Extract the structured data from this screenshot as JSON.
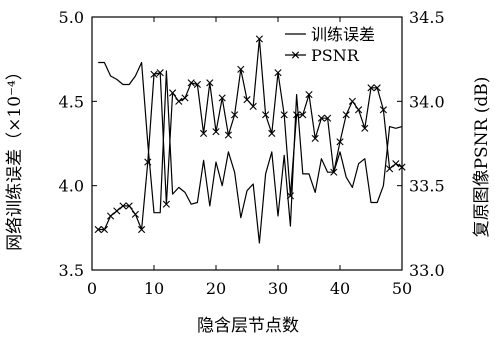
{
  "chart_data": {
    "type": "line",
    "xlabel": "隐含层节点数",
    "ylabel_left": "网络训练误差（×10⁻⁴）",
    "ylabel_right": "复原图像PSNR (dB)",
    "xlim": [
      0,
      50
    ],
    "ylim_left": [
      3.5,
      5.0
    ],
    "ylim_right": [
      33.0,
      34.5
    ],
    "xticks": [
      0,
      10,
      20,
      30,
      40,
      50
    ],
    "yticks_left": [
      "3.5",
      "4.0",
      "4.5",
      "5.0"
    ],
    "yticks_right": [
      "33.0",
      "33.5",
      "34.0",
      "34.5"
    ],
    "grid": false,
    "legend_position": "top-right",
    "series": [
      {
        "name": "训练误差",
        "axis": "left",
        "marker": "none",
        "x": [
          1,
          2,
          3,
          4,
          5,
          6,
          7,
          8,
          9,
          10,
          11,
          12,
          13,
          14,
          15,
          16,
          17,
          18,
          19,
          20,
          21,
          22,
          23,
          24,
          25,
          26,
          27,
          28,
          29,
          30,
          31,
          32,
          33,
          34,
          35,
          36,
          37,
          38,
          39,
          40,
          41,
          42,
          43,
          44,
          45,
          46,
          47,
          48,
          49,
          50
        ],
        "values": [
          4.73,
          4.73,
          4.65,
          4.63,
          4.6,
          4.6,
          4.65,
          4.73,
          4.25,
          3.84,
          3.84,
          4.68,
          3.95,
          3.99,
          3.96,
          3.89,
          3.9,
          4.15,
          3.88,
          4.14,
          4.0,
          4.2,
          4.08,
          3.81,
          3.97,
          4.01,
          3.66,
          4.07,
          4.2,
          3.82,
          4.18,
          3.76,
          4.54,
          4.07,
          4.07,
          3.96,
          4.16,
          4.08,
          4.08,
          4.2,
          4.05,
          3.99,
          4.13,
          4.16,
          3.9,
          3.9,
          4.0,
          4.35,
          4.34,
          4.35
        ]
      },
      {
        "name": "PSNR",
        "axis": "right",
        "marker": "x",
        "x": [
          1,
          2,
          3,
          4,
          5,
          6,
          7,
          8,
          9,
          10,
          11,
          12,
          13,
          14,
          15,
          16,
          17,
          18,
          19,
          20,
          21,
          22,
          23,
          24,
          25,
          26,
          27,
          28,
          29,
          30,
          31,
          32,
          33,
          34,
          35,
          36,
          37,
          38,
          39,
          40,
          41,
          42,
          43,
          44,
          45,
          46,
          47,
          48,
          49,
          50
        ],
        "values": [
          33.24,
          33.24,
          33.32,
          33.35,
          33.38,
          33.38,
          33.33,
          33.24,
          33.64,
          34.16,
          34.17,
          33.39,
          34.05,
          34.0,
          34.02,
          34.11,
          34.1,
          33.81,
          34.11,
          33.82,
          34.02,
          33.8,
          33.92,
          34.19,
          34.01,
          33.97,
          34.37,
          33.92,
          33.81,
          34.17,
          33.92,
          33.44,
          33.92,
          33.92,
          34.04,
          33.78,
          33.9,
          33.9,
          33.58,
          33.76,
          33.92,
          34.0,
          33.95,
          33.84,
          34.08,
          34.08,
          33.95,
          33.6,
          33.63,
          33.61
        ]
      }
    ]
  }
}
